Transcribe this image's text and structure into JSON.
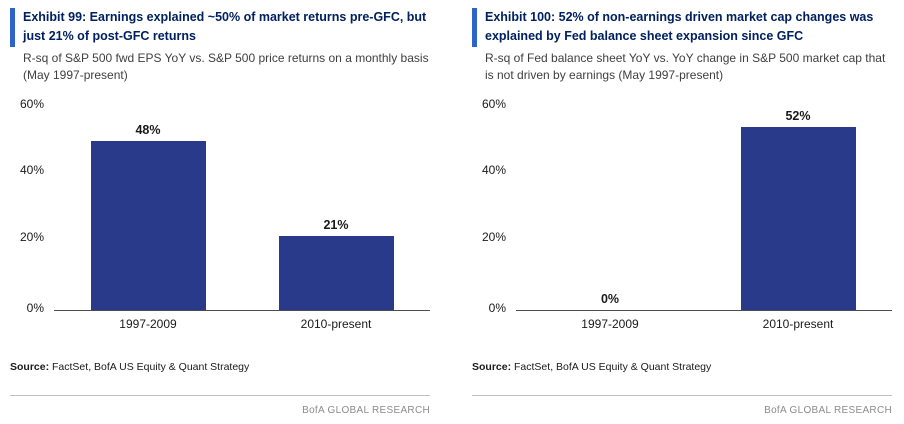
{
  "colors": {
    "accent": "#2d64c8",
    "bar": "#2a3a8a",
    "title": "#002060"
  },
  "chart_data": [
    {
      "type": "bar",
      "title": "Exhibit 99: Earnings explained ~50% of market returns pre-GFC, but just 21% of post-GFC returns",
      "subtitle": "R-sq of S&P 500 fwd EPS YoY vs. S&P 500 price returns on a monthly basis (May 1997-present)",
      "categories": [
        "1997-2009",
        "2010-present"
      ],
      "values": [
        48,
        21
      ],
      "value_labels": [
        "48%",
        "21%"
      ],
      "y_ticks": [
        "60%",
        "40%",
        "20%",
        "0%"
      ],
      "ylim": [
        0,
        60
      ],
      "grid": "off",
      "source_label": "Source:",
      "source_text": " FactSet, BofA US Equity & Quant Strategy",
      "footer": "BofA GLOBAL RESEARCH"
    },
    {
      "type": "bar",
      "title": "Exhibit 100: 52% of non-earnings driven market cap changes was explained by Fed balance sheet expansion since GFC",
      "subtitle": "R-sq of Fed balance sheet YoY vs. YoY change in S&P 500 market cap that is not driven by earnings (May 1997-present)",
      "categories": [
        "1997-2009",
        "2010-present"
      ],
      "values": [
        0,
        52
      ],
      "value_labels": [
        "0%",
        "52%"
      ],
      "y_ticks": [
        "60%",
        "40%",
        "20%",
        "0%"
      ],
      "ylim": [
        0,
        60
      ],
      "grid": "off",
      "source_label": "Source:",
      "source_text": " FactSet, BofA US Equity & Quant Strategy",
      "footer": "BofA GLOBAL RESEARCH"
    }
  ]
}
